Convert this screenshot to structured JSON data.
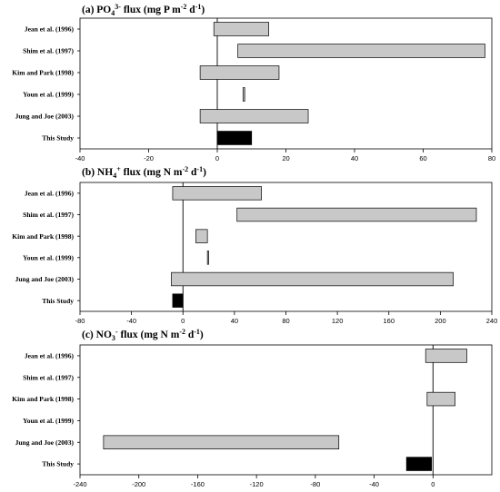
{
  "chart_data": [
    {
      "type": "bar",
      "orientation": "horizontal-range",
      "title_parts": [
        {
          "t": "(a) PO"
        },
        {
          "t": "4",
          "sub": true
        },
        {
          "t": "3-",
          "sup": true
        },
        {
          "t": " flux (mg P m"
        },
        {
          "t": "-2",
          "sup": true
        },
        {
          "t": " d"
        },
        {
          "t": "-1",
          "sup": true
        },
        {
          "t": ")"
        }
      ],
      "categories": [
        "Jean et al. (1996)",
        "Shim et al. (1997)",
        "Kim and Park (1998)",
        "Youn et al. (1999)",
        "Jung and Joe (2003)",
        "This Study"
      ],
      "ranges": [
        [
          -1,
          15
        ],
        [
          6,
          78
        ],
        [
          -5,
          18
        ],
        [
          7.5,
          8
        ],
        [
          -5,
          26.5
        ],
        [
          0,
          10
        ]
      ],
      "highlight_index": 5,
      "xlim": [
        -40,
        80
      ],
      "xticks": [
        -40,
        -20,
        0,
        20,
        40,
        60,
        80
      ],
      "colors": {
        "bar": "#c8c8c8",
        "highlight": "#000000"
      }
    },
    {
      "type": "bar",
      "orientation": "horizontal-range",
      "title_parts": [
        {
          "t": "(b) NH"
        },
        {
          "t": "4",
          "sub": true
        },
        {
          "t": "+",
          "sup": true
        },
        {
          "t": " flux (mg N m"
        },
        {
          "t": "-2",
          "sup": true
        },
        {
          "t": " d"
        },
        {
          "t": "-1",
          "sup": true
        },
        {
          "t": ")"
        }
      ],
      "categories": [
        "Jean et al. (1996)",
        "Shim et al. (1997)",
        "Kim and Park (1998)",
        "Youn et al. (1999)",
        "Jung and Joe (2003)",
        "This Study"
      ],
      "ranges": [
        [
          -8,
          61
        ],
        [
          42,
          228
        ],
        [
          10,
          19
        ],
        [
          19,
          20
        ],
        [
          -9,
          210
        ],
        [
          -8,
          0
        ]
      ],
      "highlight_index": 5,
      "xlim": [
        -80,
        240
      ],
      "xticks": [
        -80,
        -40,
        0,
        40,
        80,
        120,
        160,
        200,
        240
      ],
      "colors": {
        "bar": "#c8c8c8",
        "highlight": "#000000"
      }
    },
    {
      "type": "bar",
      "orientation": "horizontal-range",
      "title_parts": [
        {
          "t": "(c) NO"
        },
        {
          "t": "3",
          "sub": true
        },
        {
          "t": "-",
          "sup": true
        },
        {
          "t": " flux (mg N m"
        },
        {
          "t": "-2",
          "sup": true
        },
        {
          "t": " d"
        },
        {
          "t": "-1",
          "sup": true
        },
        {
          "t": ")"
        }
      ],
      "categories": [
        "Jean et al. (1996)",
        "Shim et al. (1997)",
        "Kim and Park (1998)",
        "Youn et al. (1999)",
        "Jung and Joe (2003)",
        "This Study"
      ],
      "ranges": [
        [
          -5,
          23
        ],
        null,
        [
          -4,
          15
        ],
        null,
        [
          -224,
          -64
        ],
        [
          -18,
          -1
        ]
      ],
      "highlight_index": 5,
      "xlim": [
        -240,
        40
      ],
      "xticks": [
        -240,
        -200,
        -160,
        -120,
        -80,
        -40,
        0
      ],
      "colors": {
        "bar": "#c8c8c8",
        "highlight": "#000000"
      }
    }
  ]
}
